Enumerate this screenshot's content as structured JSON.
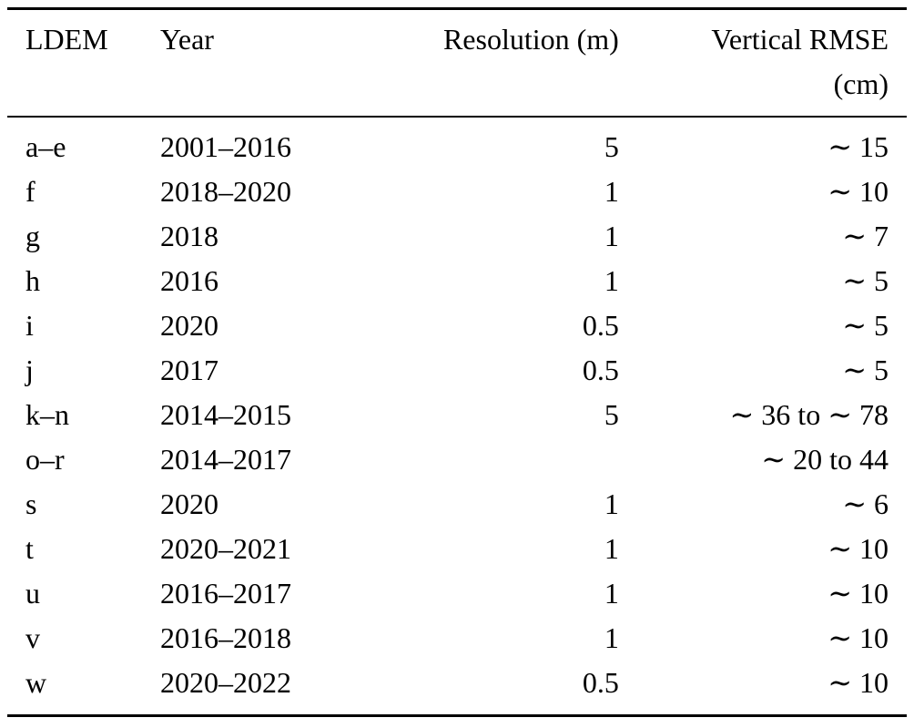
{
  "page": {
    "background": "#ffffff",
    "text_color": "#000000",
    "rule_color": "#000000"
  },
  "table": {
    "columns": [
      {
        "key": "ldem",
        "label": "LDEM",
        "align": "left"
      },
      {
        "key": "year",
        "label": "Year",
        "align": "left"
      },
      {
        "key": "resolution",
        "label": "Resolution (m)",
        "align": "right"
      },
      {
        "key": "rmse",
        "label": "Vertical RMSE\n(cm)",
        "align": "right"
      }
    ],
    "rows": [
      {
        "ldem": "a–e",
        "year": "2001–2016",
        "resolution": "5",
        "rmse": "∼ 15"
      },
      {
        "ldem": "f",
        "year": "2018–2020",
        "resolution": "1",
        "rmse": "∼ 10"
      },
      {
        "ldem": "g",
        "year": "2018",
        "resolution": "1",
        "rmse": "∼ 7"
      },
      {
        "ldem": "h",
        "year": "2016",
        "resolution": "1",
        "rmse": "∼ 5"
      },
      {
        "ldem": "i",
        "year": "2020",
        "resolution": "0.5",
        "rmse": "∼ 5"
      },
      {
        "ldem": "j",
        "year": "2017",
        "resolution": "0.5",
        "rmse": "∼ 5"
      },
      {
        "ldem": "k–n",
        "year": "2014–2015",
        "resolution": "5",
        "rmse": "∼ 36 to ∼ 78"
      },
      {
        "ldem": "o–r",
        "year": "2014–2017",
        "resolution": "",
        "rmse": "∼ 20 to 44"
      },
      {
        "ldem": "s",
        "year": "2020",
        "resolution": "1",
        "rmse": "∼ 6"
      },
      {
        "ldem": "t",
        "year": "2020–2021",
        "resolution": "1",
        "rmse": "∼ 10"
      },
      {
        "ldem": "u",
        "year": "2016–2017",
        "resolution": "1",
        "rmse": "∼ 10"
      },
      {
        "ldem": "v",
        "year": "2016–2018",
        "resolution": "1",
        "rmse": "∼ 10"
      },
      {
        "ldem": "w",
        "year": "2020–2022",
        "resolution": "0.5",
        "rmse": "∼ 10"
      }
    ]
  }
}
